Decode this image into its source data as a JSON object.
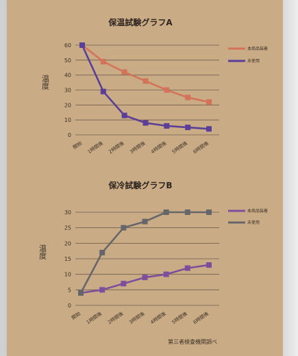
{
  "charts": {
    "A": {
      "title": "保温試験グラフA",
      "ylabel": "温度",
      "color_product": "#d3735a",
      "color_other": "#5a3e97",
      "legend": [
        "本商品装着",
        "未使用"
      ]
    },
    "B": {
      "title": "保冷試験グラフB",
      "ylabel": "温度",
      "color_product": "#7d4e9c",
      "color_other": "#66666a",
      "legend": [
        "本商品装着",
        "未使用"
      ]
    }
  },
  "footer": {
    "note": "第三者検査機関調べ"
  },
  "chart_data": [
    {
      "type": "line",
      "title": "保温試験グラフA",
      "ylabel": "温度",
      "categories": [
        "開始",
        "1時間後",
        "2時間後",
        "3時間後",
        "4時間後",
        "5時間後",
        "6時間後"
      ],
      "ylim": [
        0,
        60
      ],
      "yticks": [
        0,
        10,
        20,
        30,
        40,
        50,
        60
      ],
      "grid": true,
      "legend_position": "top-right",
      "series": [
        {
          "name": "本商品装着",
          "values": [
            60,
            49,
            42,
            36,
            30,
            25,
            22
          ]
        },
        {
          "name": "未使用",
          "values": [
            60,
            29,
            13,
            8,
            6,
            5,
            4
          ]
        }
      ]
    },
    {
      "type": "line",
      "title": "保冷試験グラフB",
      "ylabel": "温度",
      "categories": [
        "開始",
        "1時間後",
        "2時間後",
        "3時間後",
        "4時間後",
        "5時間後",
        "6時間後"
      ],
      "ylim": [
        0,
        30
      ],
      "yticks": [
        0,
        5,
        10,
        15,
        20,
        25,
        30
      ],
      "grid": true,
      "legend_position": "top-right",
      "series": [
        {
          "name": "本商品装着",
          "values": [
            4,
            5,
            7,
            9,
            10,
            12,
            13
          ]
        },
        {
          "name": "未使用",
          "values": [
            4,
            17,
            25,
            27,
            30,
            30,
            30
          ]
        }
      ]
    }
  ]
}
